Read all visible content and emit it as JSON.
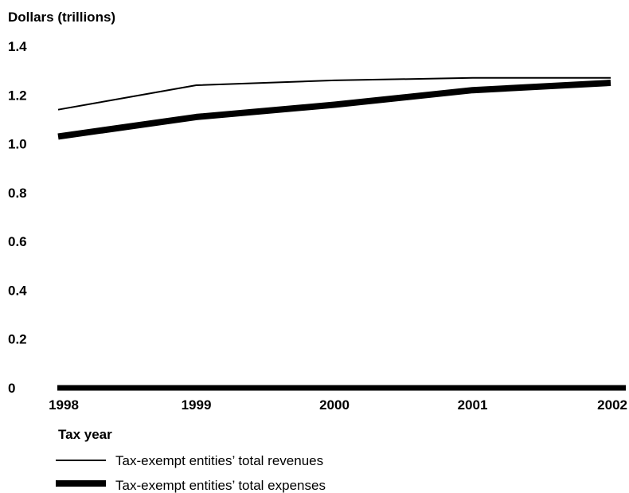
{
  "chart_data": {
    "type": "line",
    "title": "",
    "ylabel": "Dollars (trillions)",
    "xlabel": "Tax year",
    "x": [
      "1998",
      "1999",
      "2000",
      "2001",
      "2002"
    ],
    "ylim": [
      0,
      1.4
    ],
    "yticks": [
      "0",
      "0.2",
      "0.4",
      "0.6",
      "0.8",
      "1.0",
      "1.2",
      "1.4"
    ],
    "grid": false,
    "legend_position": "bottom-left",
    "series": [
      {
        "name": "Tax-exempt entities’ total revenues",
        "values": [
          1.14,
          1.24,
          1.26,
          1.27,
          1.27
        ],
        "color": "#000000",
        "style": "thin"
      },
      {
        "name": "Tax-exempt entities’ total expenses",
        "values": [
          1.03,
          1.11,
          1.16,
          1.22,
          1.25
        ],
        "color": "#000000",
        "style": "thick"
      }
    ]
  }
}
